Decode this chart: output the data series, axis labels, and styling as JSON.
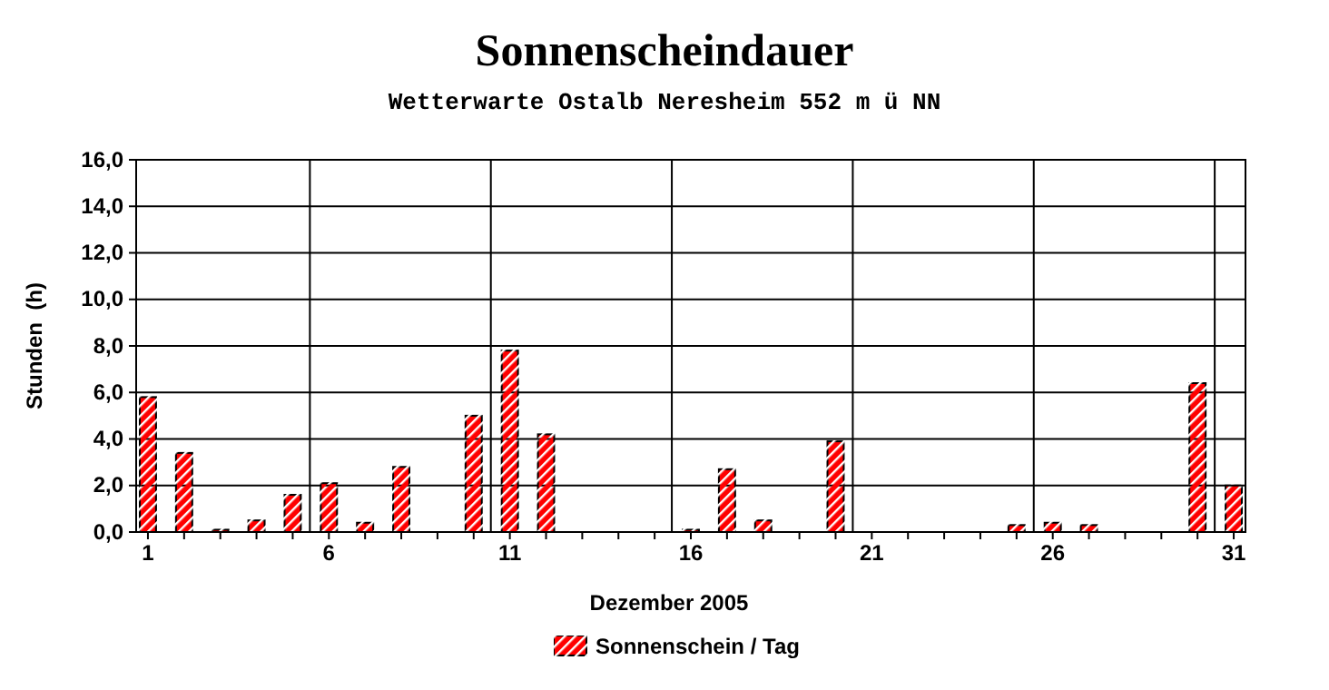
{
  "chart_data": {
    "type": "bar",
    "title": "Sonnenscheindauer",
    "subtitle": "Wetterwarte Ostalb Neresheim 552 m ü NN",
    "xlabel": "Dezember 2005",
    "ylabel": "Stunden  (h)",
    "categories": [
      "1",
      null,
      null,
      null,
      null,
      "6",
      null,
      null,
      null,
      null,
      "11",
      null,
      null,
      null,
      null,
      "16",
      null,
      null,
      null,
      null,
      "21",
      null,
      null,
      null,
      null,
      "26",
      null,
      null,
      null,
      null,
      "31"
    ],
    "series": [
      {
        "name": "Sonnenschein / Tag",
        "color": "#ff0000",
        "values": [
          5.8,
          3.4,
          0.1,
          0.5,
          1.6,
          2.1,
          0.4,
          2.8,
          0,
          5.0,
          7.8,
          4.2,
          0,
          0,
          0,
          0.1,
          2.7,
          0.5,
          0,
          3.9,
          0,
          0,
          0,
          0,
          0.3,
          0.4,
          0.3,
          0,
          0,
          6.4,
          2.0
        ]
      }
    ],
    "ylim": [
      0,
      16
    ],
    "yticks": [
      {
        "value": 0,
        "label": "0,0"
      },
      {
        "value": 2,
        "label": "2,0"
      },
      {
        "value": 4,
        "label": "4,0"
      },
      {
        "value": 6,
        "label": "6,0"
      },
      {
        "value": 8,
        "label": "8,0"
      },
      {
        "value": 10,
        "label": "10,0"
      },
      {
        "value": 12,
        "label": "12,0"
      },
      {
        "value": 14,
        "label": "14,0"
      },
      {
        "value": 16,
        "label": "16,0"
      }
    ],
    "grid": true,
    "legend": "bottom"
  }
}
